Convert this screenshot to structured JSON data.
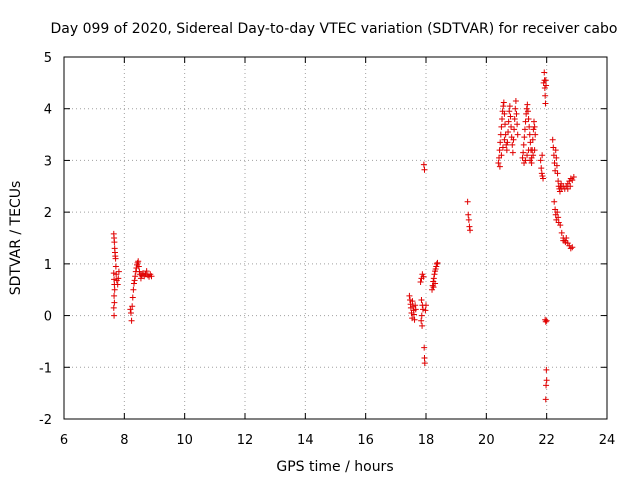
{
  "chart_data": {
    "type": "scatter",
    "title": "Day 099 of 2020, Sidereal Day-to-day VTEC variation (SDTVAR) for receiver cabo",
    "xlabel": "GPS time / hours",
    "ylabel": "SDTVAR / TECUs",
    "xlim": [
      6,
      24
    ],
    "ylim": [
      -2,
      5
    ],
    "xticks": [
      6,
      8,
      10,
      12,
      14,
      16,
      18,
      20,
      22,
      24
    ],
    "yticks": [
      -2,
      -1,
      0,
      1,
      2,
      3,
      4,
      5
    ],
    "grid": true,
    "marker": "+",
    "colors": {
      "series": "#e00000",
      "grid": "#a0a0a0",
      "frame": "#000000"
    },
    "series": [
      {
        "name": "SDTVAR",
        "points": [
          [
            7.65,
            1.58
          ],
          [
            7.66,
            1.5
          ],
          [
            7.67,
            1.42
          ],
          [
            7.68,
            1.3
          ],
          [
            7.69,
            1.22
          ],
          [
            7.7,
            1.15
          ],
          [
            7.71,
            1.1
          ],
          [
            7.72,
            0.95
          ],
          [
            7.65,
            0.82
          ],
          [
            7.66,
            0.7
          ],
          [
            7.67,
            0.6
          ],
          [
            7.68,
            0.5
          ],
          [
            7.66,
            0.38
          ],
          [
            7.67,
            0.25
          ],
          [
            7.65,
            0.15
          ],
          [
            7.66,
            0.0
          ],
          [
            7.73,
            0.8
          ],
          [
            7.75,
            0.68
          ],
          [
            7.78,
            0.6
          ],
          [
            7.8,
            0.72
          ],
          [
            7.82,
            0.85
          ],
          [
            8.2,
            0.12
          ],
          [
            8.22,
            0.05
          ],
          [
            8.24,
            -0.1
          ],
          [
            8.26,
            0.18
          ],
          [
            8.28,
            0.35
          ],
          [
            8.3,
            0.5
          ],
          [
            8.32,
            0.62
          ],
          [
            8.34,
            0.68
          ],
          [
            8.36,
            0.76
          ],
          [
            8.38,
            0.85
          ],
          [
            8.4,
            0.92
          ],
          [
            8.42,
            0.98
          ],
          [
            8.44,
            1.02
          ],
          [
            8.46,
            1.05
          ],
          [
            8.48,
            0.95
          ],
          [
            8.5,
            0.85
          ],
          [
            8.52,
            0.8
          ],
          [
            8.55,
            0.72
          ],
          [
            8.58,
            0.78
          ],
          [
            8.62,
            0.82
          ],
          [
            8.66,
            0.76
          ],
          [
            8.7,
            0.8
          ],
          [
            8.74,
            0.86
          ],
          [
            8.78,
            0.78
          ],
          [
            8.82,
            0.75
          ],
          [
            8.86,
            0.8
          ],
          [
            8.9,
            0.76
          ],
          [
            17.45,
            0.38
          ],
          [
            17.47,
            0.3
          ],
          [
            17.49,
            0.22
          ],
          [
            17.5,
            0.15
          ],
          [
            17.52,
            0.05
          ],
          [
            17.54,
            -0.05
          ],
          [
            17.55,
            0.28
          ],
          [
            17.57,
            0.18
          ],
          [
            17.59,
            0.1
          ],
          [
            17.6,
            0.02
          ],
          [
            17.62,
            -0.08
          ],
          [
            17.64,
            0.2
          ],
          [
            17.66,
            0.12
          ],
          [
            17.82,
            0.65
          ],
          [
            17.85,
            0.72
          ],
          [
            17.88,
            0.8
          ],
          [
            17.92,
            0.75
          ],
          [
            17.85,
            0.3
          ],
          [
            17.88,
            0.2
          ],
          [
            17.9,
            0.12
          ],
          [
            17.86,
            0.0
          ],
          [
            17.84,
            -0.1
          ],
          [
            17.87,
            -0.2
          ],
          [
            17.93,
            2.92
          ],
          [
            17.95,
            2.82
          ],
          [
            17.94,
            -0.62
          ],
          [
            17.95,
            -0.82
          ],
          [
            17.96,
            -0.92
          ],
          [
            17.98,
            0.1
          ],
          [
            18.0,
            0.2
          ],
          [
            18.2,
            0.5
          ],
          [
            18.22,
            0.58
          ],
          [
            18.24,
            0.66
          ],
          [
            18.26,
            0.72
          ],
          [
            18.28,
            0.8
          ],
          [
            18.3,
            0.86
          ],
          [
            18.32,
            0.9
          ],
          [
            18.34,
            0.95
          ],
          [
            18.36,
            1.0
          ],
          [
            18.38,
            1.02
          ],
          [
            18.25,
            0.55
          ],
          [
            18.3,
            0.62
          ],
          [
            19.38,
            2.2
          ],
          [
            19.4,
            1.95
          ],
          [
            19.42,
            1.85
          ],
          [
            19.44,
            1.72
          ],
          [
            19.46,
            1.65
          ],
          [
            20.4,
            2.95
          ],
          [
            20.42,
            3.05
          ],
          [
            20.44,
            3.2
          ],
          [
            20.46,
            3.35
          ],
          [
            20.48,
            3.5
          ],
          [
            20.5,
            3.65
          ],
          [
            20.52,
            3.8
          ],
          [
            20.54,
            3.95
          ],
          [
            20.56,
            4.05
          ],
          [
            20.58,
            4.12
          ],
          [
            20.6,
            3.9
          ],
          [
            20.62,
            3.7
          ],
          [
            20.64,
            3.5
          ],
          [
            20.66,
            3.3
          ],
          [
            20.68,
            3.2
          ],
          [
            20.7,
            3.35
          ],
          [
            20.72,
            3.55
          ],
          [
            20.74,
            3.75
          ],
          [
            20.76,
            3.95
          ],
          [
            20.78,
            4.05
          ],
          [
            20.8,
            3.85
          ],
          [
            20.82,
            3.65
          ],
          [
            20.84,
            3.45
          ],
          [
            20.86,
            3.3
          ],
          [
            20.88,
            3.15
          ],
          [
            20.9,
            3.4
          ],
          [
            20.92,
            3.6
          ],
          [
            20.94,
            3.8
          ],
          [
            20.96,
            4.0
          ],
          [
            20.98,
            4.15
          ],
          [
            21.0,
            3.9
          ],
          [
            21.02,
            3.7
          ],
          [
            21.04,
            3.5
          ],
          [
            20.45,
            2.88
          ],
          [
            20.5,
            3.1
          ],
          [
            20.55,
            3.25
          ],
          [
            20.6,
            3.4
          ],
          [
            21.2,
            3.05
          ],
          [
            21.22,
            3.15
          ],
          [
            21.24,
            3.3
          ],
          [
            21.26,
            3.45
          ],
          [
            21.28,
            3.6
          ],
          [
            21.3,
            3.75
          ],
          [
            21.32,
            3.9
          ],
          [
            21.34,
            4.0
          ],
          [
            21.36,
            4.08
          ],
          [
            21.38,
            3.95
          ],
          [
            21.4,
            3.8
          ],
          [
            21.42,
            3.65
          ],
          [
            21.44,
            3.5
          ],
          [
            21.46,
            3.35
          ],
          [
            21.48,
            3.2
          ],
          [
            21.5,
            3.05
          ],
          [
            21.52,
            3.2
          ],
          [
            21.54,
            3.4
          ],
          [
            21.56,
            3.6
          ],
          [
            21.58,
            3.75
          ],
          [
            21.6,
            3.65
          ],
          [
            21.62,
            3.5
          ],
          [
            21.25,
            2.95
          ],
          [
            21.3,
            3.0
          ],
          [
            21.35,
            3.1
          ],
          [
            21.4,
            3.2
          ],
          [
            21.45,
            3.0
          ],
          [
            21.5,
            2.95
          ],
          [
            21.55,
            3.1
          ],
          [
            21.6,
            3.2
          ],
          [
            21.8,
            3.0
          ],
          [
            21.82,
            2.85
          ],
          [
            21.84,
            2.75
          ],
          [
            21.86,
            2.7
          ],
          [
            21.88,
            2.65
          ],
          [
            21.85,
            3.1
          ],
          [
            21.9,
            4.5
          ],
          [
            21.92,
            4.7
          ],
          [
            21.93,
            4.55
          ],
          [
            21.94,
            4.4
          ],
          [
            21.95,
            4.25
          ],
          [
            21.96,
            4.1
          ],
          [
            21.97,
            4.55
          ],
          [
            21.98,
            4.45
          ],
          [
            21.95,
            -0.08
          ],
          [
            21.97,
            -0.12
          ],
          [
            22.0,
            -0.1
          ],
          [
            21.99,
            -1.05
          ],
          [
            22.0,
            -1.25
          ],
          [
            21.98,
            -1.35
          ],
          [
            21.97,
            -1.62
          ],
          [
            22.2,
            3.4
          ],
          [
            22.22,
            3.25
          ],
          [
            22.24,
            3.1
          ],
          [
            22.26,
            2.95
          ],
          [
            22.28,
            2.8
          ],
          [
            22.3,
            3.2
          ],
          [
            22.32,
            3.05
          ],
          [
            22.34,
            2.9
          ],
          [
            22.36,
            2.75
          ],
          [
            22.38,
            2.6
          ],
          [
            22.4,
            2.5
          ],
          [
            22.42,
            2.45
          ],
          [
            22.44,
            2.4
          ],
          [
            22.46,
            2.5
          ],
          [
            22.48,
            2.55
          ],
          [
            22.5,
            2.45
          ],
          [
            22.55,
            2.5
          ],
          [
            22.6,
            2.45
          ],
          [
            22.65,
            2.5
          ],
          [
            22.7,
            2.55
          ],
          [
            22.75,
            2.6
          ],
          [
            22.8,
            2.65
          ],
          [
            22.85,
            2.62
          ],
          [
            22.9,
            2.68
          ],
          [
            22.7,
            2.45
          ],
          [
            22.78,
            2.5
          ],
          [
            22.25,
            2.2
          ],
          [
            22.28,
            2.05
          ],
          [
            22.3,
            1.95
          ],
          [
            22.32,
            1.85
          ],
          [
            22.35,
            2.0
          ],
          [
            22.38,
            1.9
          ],
          [
            22.4,
            1.8
          ],
          [
            22.45,
            1.75
          ],
          [
            22.5,
            1.6
          ],
          [
            22.55,
            1.5
          ],
          [
            22.6,
            1.45
          ],
          [
            22.65,
            1.5
          ],
          [
            22.7,
            1.4
          ],
          [
            22.75,
            1.35
          ],
          [
            22.8,
            1.3
          ],
          [
            22.85,
            1.32
          ],
          [
            22.55,
            1.45
          ],
          [
            22.62,
            1.42
          ]
        ]
      }
    ]
  }
}
